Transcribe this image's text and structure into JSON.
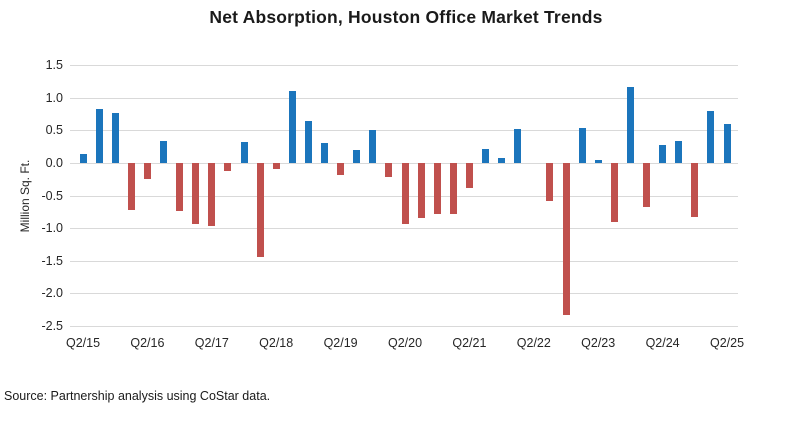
{
  "title": "Net Absorption, Houston Office Market Trends",
  "source": "Source: Partnership analysis using CoStar data.",
  "colors": {
    "positive_bar": "#1b75bc",
    "negative_bar": "#c0504d",
    "gridline": "#d9d9d9",
    "text": "#262626"
  },
  "chart_data": {
    "type": "bar",
    "title": "Net Absorption, Houston Office Market Trends",
    "xlabel": "",
    "ylabel": "Million Sq. Ft.",
    "ylim": [
      -2.5,
      1.5
    ],
    "grid": "horizontal",
    "legend": "none",
    "yticks": [
      "1.5",
      "1.0",
      "0.5",
      "0.0",
      "-0.5",
      "-1.0",
      "-1.5",
      "-2.0",
      "-2.5"
    ],
    "x_tick_labels": [
      "Q2/15",
      "Q2/16",
      "Q2/17",
      "Q2/18",
      "Q2/19",
      "Q2/20",
      "Q2/21",
      "Q2/22",
      "Q2/23",
      "Q2/24",
      "Q2/25"
    ],
    "x_tick_every": 4,
    "categories": [
      "Q2/15",
      "Q3/15",
      "Q4/15",
      "Q1/16",
      "Q2/16",
      "Q3/16",
      "Q4/16",
      "Q1/17",
      "Q2/17",
      "Q3/17",
      "Q4/17",
      "Q1/18",
      "Q2/18",
      "Q3/18",
      "Q4/18",
      "Q1/19",
      "Q2/19",
      "Q3/19",
      "Q4/19",
      "Q1/20",
      "Q2/20",
      "Q3/20",
      "Q4/20",
      "Q1/21",
      "Q2/21",
      "Q3/21",
      "Q4/21",
      "Q1/22",
      "Q2/22",
      "Q3/22",
      "Q4/22",
      "Q1/23",
      "Q2/23",
      "Q3/23",
      "Q4/23",
      "Q1/24",
      "Q2/24",
      "Q3/24",
      "Q4/24",
      "Q1/25",
      "Q2/25"
    ],
    "values": [
      0.13,
      0.83,
      0.76,
      -0.72,
      -0.25,
      0.33,
      -0.73,
      -0.94,
      -0.97,
      -0.13,
      0.32,
      -1.45,
      -0.1,
      1.1,
      0.64,
      0.3,
      -0.19,
      0.2,
      0.51,
      -0.21,
      -0.93,
      -0.84,
      -0.78,
      -0.78,
      -0.38,
      0.22,
      0.07,
      0.52,
      0.0,
      -0.58,
      -2.33,
      0.53,
      0.04,
      -0.91,
      1.16,
      -0.68,
      0.27,
      0.33,
      -0.83,
      0.79,
      0.59
    ],
    "positive_color": "#1b75bc",
    "negative_color": "#c0504d"
  }
}
